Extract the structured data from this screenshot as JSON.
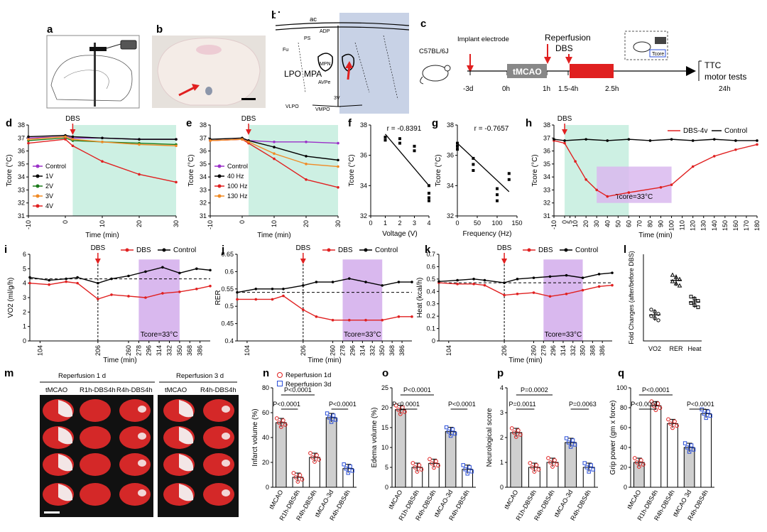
{
  "panel_labels": {
    "a": "a",
    "b": "b",
    "b2": "b'",
    "c": "c",
    "d": "d",
    "e": "e",
    "f": "f",
    "g": "g",
    "h": "h",
    "i": "i",
    "j": "j",
    "k": "k",
    "l": "l",
    "m": "m",
    "n": "n",
    "o": "o",
    "p": "p",
    "q": "q"
  },
  "b2_atlas": {
    "ac": "ac",
    "adp": "ADP",
    "ps": "PS",
    "fu": "Fu",
    "mpn": "MPN",
    "lpo": "LPO",
    "mpa": "MPA",
    "avpe": "AVPe",
    "v3": "3V",
    "vlpo": "VLPO",
    "vmpo": "VMPO"
  },
  "timeline": {
    "mouse": "C57BL/6J",
    "implant": "Implant electrode",
    "reperfusion": "Reperfusion",
    "dbs": "DBS",
    "tmcao": "tMCAO",
    "tcore": "Tcore",
    "ttc": "TTC",
    "motor": "motor tests",
    "ticks": [
      "-3d",
      "0h",
      "1h",
      "1.5-4h",
      "2.5h",
      "24h"
    ]
  },
  "chart_data": [
    {
      "id": "d",
      "type": "line",
      "ylabel": "Tcore (°C)",
      "xlabel": "Time (min)",
      "xlim": [
        -10,
        30
      ],
      "ylim": [
        31,
        38
      ],
      "annotation": "DBS",
      "shade": [
        2,
        30
      ],
      "xticks": [
        -10,
        0,
        10,
        20,
        30
      ],
      "yticks": [
        31,
        32,
        33,
        34,
        35,
        36,
        37,
        38
      ],
      "series": [
        {
          "name": "Control",
          "color": "#9b30c8",
          "x": [
            -10,
            0,
            2,
            10,
            20,
            30
          ],
          "y": [
            37.0,
            37.1,
            37.0,
            37.0,
            36.9,
            36.9
          ]
        },
        {
          "name": "1V",
          "color": "#000000",
          "x": [
            -10,
            0,
            2,
            10,
            20,
            30
          ],
          "y": [
            37.1,
            37.2,
            37.1,
            37.0,
            36.9,
            36.9
          ]
        },
        {
          "name": "2V",
          "color": "#1a7a1a",
          "x": [
            -10,
            0,
            2,
            10,
            20,
            30
          ],
          "y": [
            36.8,
            37.0,
            36.8,
            36.7,
            36.6,
            36.5
          ]
        },
        {
          "name": "3V",
          "color": "#f08a24",
          "x": [
            -10,
            0,
            2,
            10,
            20,
            30
          ],
          "y": [
            36.9,
            37.1,
            36.9,
            36.7,
            36.5,
            36.4
          ]
        },
        {
          "name": "4V",
          "color": "#e02020",
          "x": [
            -10,
            0,
            2,
            10,
            20,
            30
          ],
          "y": [
            36.6,
            36.9,
            36.4,
            35.2,
            34.2,
            33.6
          ]
        }
      ]
    },
    {
      "id": "e",
      "type": "line",
      "ylabel": "Tcore (°C)",
      "xlabel": "Time (min)",
      "xlim": [
        -10,
        30
      ],
      "ylim": [
        31,
        38
      ],
      "annotation": "DBS",
      "shade": [
        2,
        30
      ],
      "xticks": [
        -10,
        0,
        10,
        20,
        30
      ],
      "yticks": [
        31,
        32,
        33,
        34,
        35,
        36,
        37,
        38
      ],
      "series": [
        {
          "name": "Control",
          "color": "#9b30c8",
          "x": [
            -10,
            0,
            2,
            10,
            20,
            30
          ],
          "y": [
            36.8,
            36.9,
            36.8,
            36.7,
            36.7,
            36.6
          ]
        },
        {
          "name": "40 Hz",
          "color": "#000000",
          "x": [
            -10,
            0,
            2,
            10,
            20,
            30
          ],
          "y": [
            36.9,
            37.0,
            36.8,
            36.3,
            35.6,
            35.3
          ]
        },
        {
          "name": "100 Hz",
          "color": "#e02020",
          "x": [
            -10,
            0,
            2,
            10,
            20,
            30
          ],
          "y": [
            36.8,
            36.9,
            36.6,
            35.4,
            33.8,
            33.2
          ]
        },
        {
          "name": "130 Hz",
          "color": "#f08a24",
          "x": [
            -10,
            0,
            2,
            10,
            20,
            30
          ],
          "y": [
            36.8,
            36.9,
            36.7,
            35.8,
            35.0,
            34.8
          ]
        }
      ]
    },
    {
      "id": "f",
      "type": "scatter",
      "ylabel": "Tcore (°C)",
      "xlabel": "Voltage  (V)",
      "xlim": [
        0,
        4
      ],
      "ylim": [
        32,
        38
      ],
      "annotation": "r = -0.8391",
      "xticks": [
        0,
        1,
        2,
        3,
        4
      ],
      "yticks": [
        32,
        34,
        36,
        38
      ],
      "x": [
        1,
        1,
        2,
        2,
        3,
        3,
        4,
        4,
        4,
        4
      ],
      "y": [
        37.2,
        37.0,
        37.1,
        36.8,
        36.6,
        36.3,
        34.0,
        33.5,
        33.2,
        33.0
      ],
      "fit": [
        [
          1,
          37.4
        ],
        [
          4,
          34.0
        ]
      ]
    },
    {
      "id": "g",
      "type": "scatter",
      "ylabel": "Tcore (°C)",
      "xlabel": "Frequency (Hz)",
      "xlim": [
        0,
        150
      ],
      "ylim": [
        32,
        38
      ],
      "annotation": "r = -0.7657",
      "xticks": [
        0,
        50,
        100,
        150
      ],
      "yticks": [
        32,
        34,
        36,
        38
      ],
      "x": [
        0,
        0,
        0,
        40,
        40,
        40,
        100,
        100,
        100,
        130,
        130
      ],
      "y": [
        36.8,
        36.6,
        36.4,
        35.8,
        35.4,
        35.0,
        33.8,
        33.4,
        33.0,
        34.8,
        34.4
      ],
      "fit": [
        [
          0,
          36.8
        ],
        [
          130,
          33.6
        ]
      ]
    },
    {
      "id": "h",
      "type": "line",
      "ylabel": "Tcore (°C)",
      "xlabel": "Time (min)",
      "xlim": [
        -10,
        180
      ],
      "ylim": [
        31,
        38
      ],
      "annotation": "DBS",
      "note": "Tcore=33°C",
      "shade": [
        0,
        60
      ],
      "shade2": [
        30,
        100
      ],
      "xticks": [
        -10,
        0,
        5,
        10,
        20,
        30,
        40,
        50,
        60,
        70,
        80,
        90,
        100,
        110,
        120,
        130,
        140,
        150,
        160,
        170,
        180
      ],
      "yticks": [
        31,
        32,
        33,
        34,
        35,
        36,
        37,
        38
      ],
      "series": [
        {
          "name": "DBS-4v",
          "color": "#e02020",
          "x": [
            -10,
            0,
            10,
            20,
            30,
            40,
            60,
            90,
            100,
            120,
            140,
            160,
            180
          ],
          "y": [
            36.8,
            36.6,
            35.2,
            33.8,
            33.0,
            32.5,
            32.8,
            33.2,
            33.4,
            34.8,
            35.6,
            36.1,
            36.5
          ]
        },
        {
          "name": "Control",
          "color": "#000000",
          "x": [
            -10,
            0,
            20,
            40,
            60,
            80,
            100,
            120,
            140,
            160,
            180
          ],
          "y": [
            36.9,
            36.8,
            36.9,
            36.8,
            36.9,
            36.8,
            36.9,
            36.8,
            36.9,
            36.8,
            36.8
          ]
        }
      ]
    },
    {
      "id": "i",
      "type": "line",
      "ylabel": "VO2 (ml/g/h)",
      "xlabel": "Time (min)",
      "xlim": [
        86,
        404
      ],
      "ylim": [
        0,
        6
      ],
      "annotation": "DBS",
      "note": "Tcore=33°C",
      "shade": [
        278,
        350
      ],
      "xticks": [
        104,
        206,
        260,
        278,
        296,
        314,
        332,
        350,
        368,
        386
      ],
      "xtick_labels": [
        "104",
        "206",
        "260",
        "278",
        "296",
        "314",
        "332",
        "350",
        "368",
        "386"
      ],
      "yticks": [
        0,
        1,
        2,
        3,
        4,
        5,
        6
      ],
      "series": [
        {
          "name": "DBS",
          "color": "#e02020",
          "x": [
            86,
            120,
            150,
            170,
            206,
            230,
            260,
            290,
            320,
            350,
            380,
            404
          ],
          "y": [
            4.0,
            3.9,
            4.1,
            4.0,
            2.9,
            3.2,
            3.1,
            3.0,
            3.3,
            3.4,
            3.6,
            3.8
          ]
        },
        {
          "name": "Control",
          "color": "#000000",
          "x": [
            86,
            120,
            150,
            170,
            206,
            230,
            260,
            290,
            320,
            350,
            380,
            404
          ],
          "y": [
            4.4,
            4.2,
            4.3,
            4.4,
            4.0,
            4.3,
            4.5,
            4.8,
            5.1,
            4.7,
            5.0,
            4.9
          ]
        }
      ]
    },
    {
      "id": "j",
      "type": "line",
      "ylabel": "RER",
      "xlabel": "Time (min)",
      "xlim": [
        86,
        404
      ],
      "ylim": [
        0.4,
        0.65
      ],
      "annotation": "DBS",
      "note": "Tcore=33°C",
      "shade": [
        278,
        350
      ],
      "xticks": [
        104,
        206,
        260,
        278,
        296,
        314,
        332,
        350,
        368,
        386
      ],
      "xtick_labels": [
        "104",
        "206",
        "260",
        "278",
        "296",
        "314",
        "332",
        "350",
        "368",
        "386"
      ],
      "yticks": [
        0.4,
        0.45,
        0.5,
        0.55,
        0.6,
        0.65
      ],
      "series": [
        {
          "name": "DBS",
          "color": "#e02020",
          "x": [
            86,
            120,
            150,
            170,
            206,
            230,
            260,
            290,
            320,
            350,
            380,
            404
          ],
          "y": [
            0.52,
            0.52,
            0.52,
            0.53,
            0.49,
            0.47,
            0.46,
            0.46,
            0.46,
            0.46,
            0.47,
            0.47
          ]
        },
        {
          "name": "Control",
          "color": "#000000",
          "x": [
            86,
            120,
            150,
            170,
            206,
            230,
            260,
            290,
            320,
            350,
            380,
            404
          ],
          "y": [
            0.54,
            0.55,
            0.55,
            0.55,
            0.56,
            0.57,
            0.57,
            0.58,
            0.57,
            0.56,
            0.57,
            0.57
          ]
        }
      ]
    },
    {
      "id": "k",
      "type": "line",
      "ylabel": "Heat (kcal/h)",
      "xlabel": "Time (min)",
      "xlim": [
        86,
        404
      ],
      "ylim": [
        0,
        0.7
      ],
      "annotation": "DBS",
      "note": "Tcore=33°C",
      "shade": [
        278,
        350
      ],
      "xticks": [
        104,
        206,
        260,
        278,
        296,
        314,
        332,
        350,
        368,
        386
      ],
      "xtick_labels": [
        "104",
        "206",
        "260",
        "278",
        "296",
        "314",
        "332",
        "350",
        "368",
        "386"
      ],
      "yticks": [
        0,
        0.1,
        0.2,
        0.3,
        0.4,
        0.5,
        0.6,
        0.7
      ],
      "series": [
        {
          "name": "DBS",
          "color": "#e02020",
          "x": [
            86,
            120,
            150,
            170,
            206,
            230,
            260,
            290,
            320,
            350,
            380,
            404
          ],
          "y": [
            0.47,
            0.46,
            0.46,
            0.45,
            0.37,
            0.38,
            0.39,
            0.36,
            0.38,
            0.41,
            0.44,
            0.45
          ]
        },
        {
          "name": "Control",
          "color": "#000000",
          "x": [
            86,
            120,
            150,
            170,
            206,
            230,
            260,
            290,
            320,
            350,
            380,
            404
          ],
          "y": [
            0.48,
            0.49,
            0.5,
            0.49,
            0.47,
            0.5,
            0.51,
            0.52,
            0.53,
            0.51,
            0.54,
            0.55
          ]
        }
      ]
    },
    {
      "id": "l",
      "type": "scatter",
      "ylabel": "Fold Changes (after/before DBS)",
      "categories": [
        "VO2",
        "RER",
        "Heat"
      ],
      "ylim": [
        0.6,
        1.0
      ],
      "values": [
        0.72,
        0.88,
        0.78
      ]
    },
    {
      "id": "n",
      "type": "bar",
      "ylabel": "Infarct volume (%)",
      "ylim": [
        0,
        80
      ],
      "yticks": [
        0,
        20,
        40,
        60,
        80
      ],
      "categories": [
        "tMCAO",
        "R1h-DBS4h",
        "R4h-DBS4h",
        "tMCAO-3d",
        "R4h-DBS4h"
      ],
      "values": [
        52,
        8,
        24,
        56,
        15
      ],
      "pvalues": [
        "P<0.0001",
        "P<0.0001",
        "P<0.0001"
      ]
    },
    {
      "id": "o",
      "type": "bar",
      "ylabel": "Edema volume (%)",
      "ylim": [
        0,
        25
      ],
      "yticks": [
        0,
        5,
        10,
        15,
        20,
        25
      ],
      "categories": [
        "tMCAO",
        "R1h-DBS4h",
        "R4h-DBS4h",
        "tMCAO-3d",
        "R4h-DBS4h"
      ],
      "values": [
        19.5,
        5,
        6,
        14,
        4.5
      ],
      "pvalues": [
        "P<0.0001",
        "P<0.0001",
        "P<0.0001"
      ]
    },
    {
      "id": "p",
      "type": "bar",
      "ylabel": "Neurological score",
      "ylim": [
        0,
        4
      ],
      "yticks": [
        0,
        1,
        2,
        3,
        4
      ],
      "categories": [
        "tMCAO",
        "R1h-DBS4h",
        "R4h-DBS4h",
        "tMCAO-3d",
        "R4h-DBS4h"
      ],
      "values": [
        2.2,
        0.8,
        1.0,
        1.8,
        0.8
      ],
      "pvalues": [
        "P=0.0002",
        "P=0.0011",
        "P=0.0063"
      ]
    },
    {
      "id": "q",
      "type": "bar",
      "ylabel": "Grip power (gm x force)",
      "ylim": [
        0,
        100
      ],
      "yticks": [
        0,
        20,
        40,
        60,
        80,
        100
      ],
      "categories": [
        "tMCAO",
        "R1h-DBS4h",
        "R4h-DBS4h",
        "tMCAO 3d",
        "R4h-DBS4h"
      ],
      "values": [
        25,
        82,
        64,
        40,
        74
      ],
      "pvalues": [
        "P<0.0001",
        "P<0.0001",
        "P<0.0001"
      ]
    }
  ],
  "legends": {
    "n_legend": [
      "Reperfusion 1d",
      "Reperfusion 3d"
    ],
    "h_legend": [
      "DBS-4v",
      "Control"
    ],
    "ijk_legend": [
      "DBS",
      "Control"
    ]
  },
  "panel_m": {
    "header1": "Reperfusion 1 d",
    "header2": "Reperfusion 3 d",
    "cols": [
      "tMCAO",
      "R1h-DBS4h",
      "R4h-DBS4h",
      "tMCAO",
      "R4h-DBS4h"
    ]
  },
  "colors": {
    "red": "#e02020",
    "black": "#000000",
    "purple": "#9b30c8",
    "green": "#1a7a1a",
    "orange": "#f08a24",
    "teal_shade": "#c8eee0",
    "violet_shade": "#d9b8ee",
    "blue": "#2b4fd8",
    "grey_bar": "#cfcfcf"
  }
}
